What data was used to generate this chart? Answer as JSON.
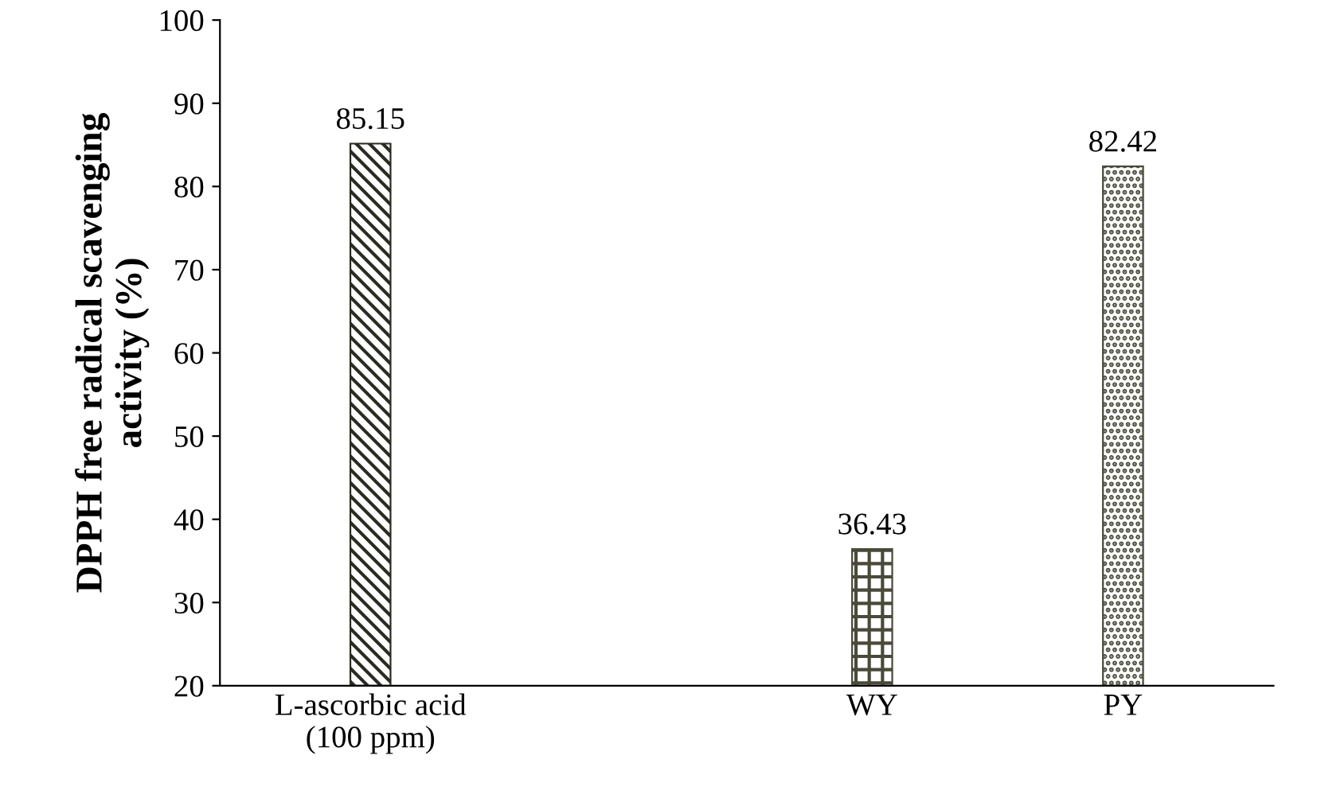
{
  "chart_data": {
    "type": "bar",
    "ylabel": "DPPH free radical scavenging\nactivity (%)",
    "categories": [
      "L-ascorbic acid\n(100 ppm)",
      null,
      "WY",
      "PY"
    ],
    "values": [
      85.15,
      null,
      36.43,
      82.42
    ],
    "colors": [
      "#2b2b22",
      "#2b2b22",
      "#4a4a3a",
      "#4a4a3a"
    ],
    "ylim": [
      20,
      100
    ],
    "yticks": [
      20,
      30,
      40,
      50,
      60,
      70,
      80,
      90,
      100
    ],
    "data_labels": true,
    "grid": false,
    "legend": false
  }
}
